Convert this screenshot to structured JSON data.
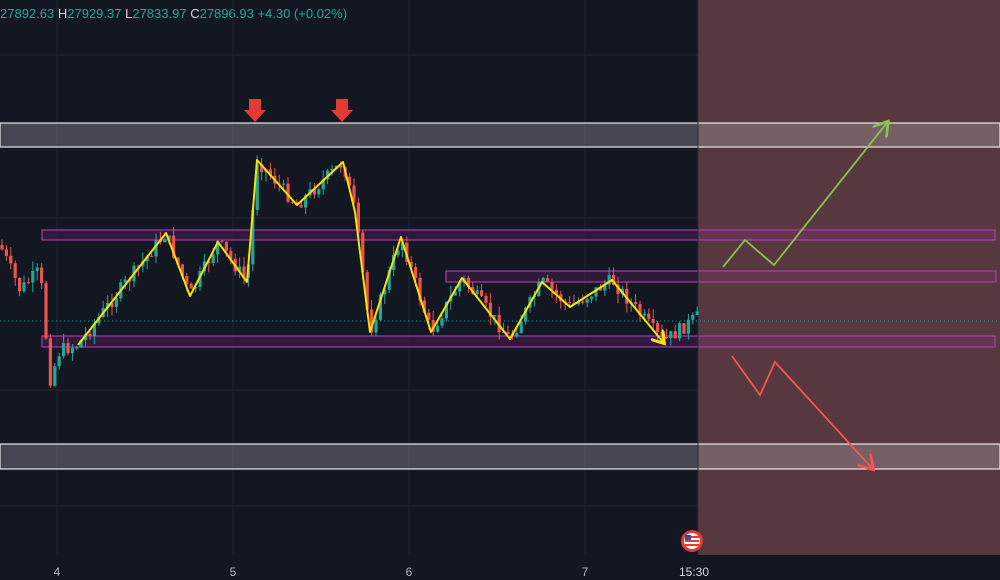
{
  "header": {
    "open_value": "27892.63",
    "high_label": "H",
    "high_value": "27929.37",
    "low_label": "L",
    "low_value": "27833.97",
    "close_label": "C",
    "close_value": "27896.93",
    "change": "+4.30 (+0.02%)"
  },
  "colors": {
    "background": "#131722",
    "up_candle": "#26a69a",
    "down_candle": "#ef5350",
    "zigzag": "#f5e30a",
    "forecast_zone": "#5a3a40",
    "zone_outline": "#e8e8e8",
    "range_box": "#c040c0",
    "bull_path": "#8bc34a",
    "bear_path": "#ff5252",
    "marker_arrow": "#e53935"
  },
  "chart_data": {
    "type": "candlestick",
    "x_ticks": [
      "4",
      "5",
      "6",
      "7",
      "15:30"
    ],
    "current_price_line": 27896.93,
    "resistance_zone": [
      28065,
      28090
    ],
    "support_zone": [
      27740,
      27765
    ],
    "upper_range_box": [
      27958,
      27967
    ],
    "mid_range_box": [
      27930,
      27942
    ],
    "lower_range_box": [
      27875,
      27884
    ],
    "top_markers": [
      "down-arrow",
      "down-arrow"
    ],
    "forecast_paths": [
      "bullish",
      "bearish"
    ],
    "event_flag": "us-flag",
    "approximate_low": 27760,
    "approximate_high": 28058
  }
}
